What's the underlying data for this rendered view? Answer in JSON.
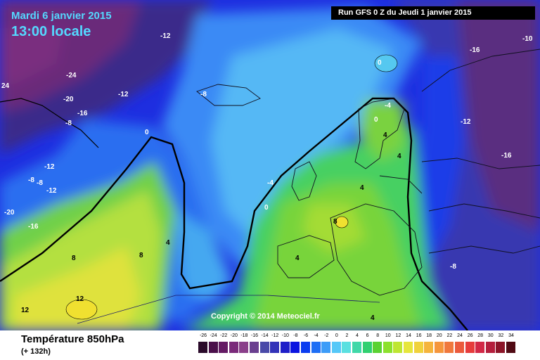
{
  "header": {
    "date": "Mardi 6 janvier 2015",
    "time": "13:00 locale",
    "run": "Run GFS 0 Z du Jeudi 1 janvier 2015"
  },
  "copyright": "Copyright © 2014 Meteociel.fr",
  "footer": {
    "title": "Température 850hPa",
    "subtitle": "(+ 132h)"
  },
  "contour_labels": [
    {
      "text": "-12"
    },
    {
      "text": "-24"
    },
    {
      "text": "24"
    },
    {
      "text": "-20"
    },
    {
      "text": "-12"
    },
    {
      "text": "-16"
    },
    {
      "text": "-8"
    },
    {
      "text": "-8"
    },
    {
      "text": "-12"
    },
    {
      "text": "-8"
    },
    {
      "text": "-8"
    },
    {
      "text": "-12"
    },
    {
      "text": "-20"
    },
    {
      "text": "-16"
    },
    {
      "text": "0"
    },
    {
      "text": "-4"
    },
    {
      "text": "0"
    },
    {
      "text": "8"
    },
    {
      "text": "8"
    },
    {
      "text": "4"
    },
    {
      "text": "12"
    },
    {
      "text": "12"
    },
    {
      "text": "0"
    },
    {
      "text": "-4"
    },
    {
      "text": "0"
    },
    {
      "text": "4"
    },
    {
      "text": "8"
    },
    {
      "text": "4"
    },
    {
      "text": "4"
    },
    {
      "text": "-12"
    },
    {
      "text": "-16"
    },
    {
      "text": "-16"
    },
    {
      "text": "-8"
    },
    {
      "text": "4"
    },
    {
      "text": "4"
    },
    {
      "text": "-10"
    }
  ],
  "legend": {
    "ticks": [
      "-26",
      "-24",
      "-22",
      "-20",
      "-18",
      "-16",
      "-14",
      "-12",
      "-10",
      "-8",
      "-6",
      "-4",
      "-2",
      "0",
      "2",
      "4",
      "6",
      "8",
      "10",
      "12",
      "14",
      "16",
      "18",
      "20",
      "22",
      "24",
      "26",
      "28",
      "30",
      "32",
      "34"
    ],
    "colors": [
      "#2a0a2a",
      "#4a0f4a",
      "#641a64",
      "#7a2a7a",
      "#8a3f8a",
      "#6a3f8f",
      "#4a4aa8",
      "#3232b8",
      "#1e1ec8",
      "#0a14e0",
      "#0a3cf0",
      "#1e6ef5",
      "#3c9cf8",
      "#55c8f8",
      "#5ae0e0",
      "#40d8a8",
      "#30d070",
      "#5ad232",
      "#8ce12d",
      "#bee632",
      "#e6e63c",
      "#f0d23c",
      "#f5b43c",
      "#f5963c",
      "#f0783c",
      "#eb5a3c",
      "#e63c3c",
      "#d22846",
      "#b41e3c",
      "#8c1428",
      "#500a14"
    ]
  }
}
